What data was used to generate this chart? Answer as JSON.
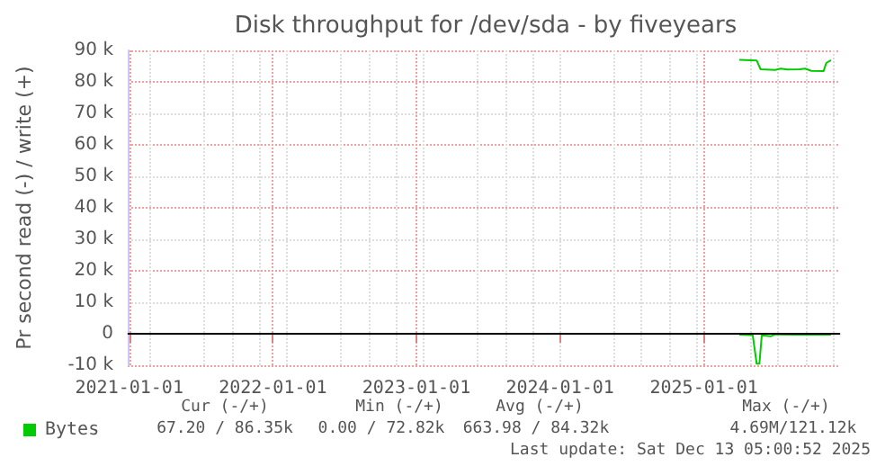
{
  "chart_data": {
    "type": "line",
    "title": "Disk throughput for /dev/sda - by fiveyears",
    "ylabel": "Pr second read (-) / write (+)",
    "xlim": [
      "2020-12-28",
      "2025-12-13"
    ],
    "xticks": [
      "2021-01-01",
      "2022-01-01",
      "2023-01-01",
      "2024-01-01",
      "2025-01-01"
    ],
    "ylim": [
      -10000,
      90000
    ],
    "yticks": [
      {
        "value": -10000,
        "label": "-10 k"
      },
      0,
      {
        "value": 10000,
        "label": "10 k"
      },
      {
        "value": 20000,
        "label": "20 k"
      },
      {
        "value": 30000,
        "label": "30 k"
      },
      {
        "value": 40000,
        "label": "40 k"
      },
      {
        "value": 50000,
        "label": "50 k"
      },
      {
        "value": 60000,
        "label": "60 k"
      },
      {
        "value": 70000,
        "label": "70 k"
      },
      {
        "value": 80000,
        "label": "80 k"
      },
      {
        "value": 90000,
        "label": "90 k"
      }
    ],
    "grid": true,
    "legend": "bottom left",
    "line_style": "solid",
    "marker": "none",
    "series": [
      {
        "name": "Bytes",
        "color": "#00cc00",
        "x": [
          "2025-04-01",
          "2025-05-15",
          "2025-05-25",
          "2025-07-01",
          "2025-07-15",
          "2025-08-01",
          "2025-09-01",
          "2025-09-15",
          "2025-10-01",
          "2025-11-01",
          "2025-11-08",
          "2025-11-20"
        ],
        "values": [
          87000,
          86800,
          84000,
          83800,
          84200,
          83900,
          84000,
          84200,
          83500,
          83400,
          86000,
          86900
        ]
      },
      {
        "color": "#00cc00",
        "x": [
          "2025-04-01",
          "2025-05-05",
          "2025-05-15",
          "2025-05-22",
          "2025-05-28",
          "2025-06-20",
          "2025-07-01",
          "2025-08-15",
          "2025-10-01",
          "2025-11-20"
        ],
        "values": [
          -300,
          -400,
          -9500,
          -9500,
          -500,
          -800,
          -200,
          -300,
          -300,
          -300
        ]
      }
    ],
    "ref_lines": [
      {
        "axis": "y",
        "value": 0,
        "color": "#000000"
      }
    ],
    "annotations": [
      "Cur (-/+)",
      "Min (-/+)",
      "Avg (-/+)",
      "Max (-/+)",
      "67.20 / 86.35k",
      "0.00 / 72.82k",
      "663.98 / 84.32k",
      "4.69M/121.12k",
      "Last update: Sat Dec 13 05:00:52 2025"
    ]
  }
}
